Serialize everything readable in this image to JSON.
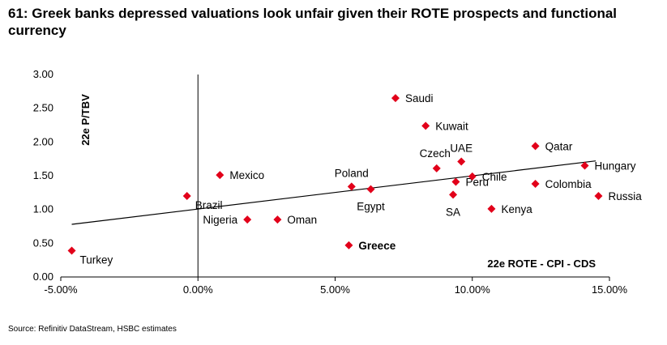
{
  "title": "61: Greek banks depressed valuations look unfair given their ROTE prospects and functional currency",
  "source": "Source: Refinitiv DataStream, HSBC estimates",
  "colors": {
    "marker": "#e2001a",
    "axis": "#000000",
    "trend": "#000000"
  },
  "chart_data": {
    "type": "scatter",
    "xlabel": "22e ROTE - CPI - CDS",
    "ylabel": "22e P/TBV",
    "xlim": [
      -0.05,
      0.15
    ],
    "ylim": [
      0,
      3
    ],
    "xticks": [
      -0.05,
      0,
      0.05,
      0.1,
      0.15
    ],
    "xtick_labels": [
      "-5.00%",
      "0.00%",
      "5.00%",
      "10.00%",
      "15.00%"
    ],
    "yticks": [
      0,
      0.5,
      1,
      1.5,
      2,
      2.5,
      3
    ],
    "ytick_labels": [
      "0.00",
      "0.50",
      "1.00",
      "1.50",
      "2.00",
      "2.50",
      "3.00"
    ],
    "grid": false,
    "trendline": {
      "x": [
        -0.046,
        0.145
      ],
      "y": [
        0.78,
        1.72
      ]
    },
    "points": [
      {
        "name": "Turkey",
        "x": -0.046,
        "y": 0.39,
        "pos": "right-below"
      },
      {
        "name": "Brazil",
        "x": -0.004,
        "y": 1.2,
        "pos": "right-below"
      },
      {
        "name": "Mexico",
        "x": 0.008,
        "y": 1.51,
        "pos": "right"
      },
      {
        "name": "Nigeria",
        "x": 0.018,
        "y": 0.85,
        "pos": "left"
      },
      {
        "name": "Oman",
        "x": 0.029,
        "y": 0.85,
        "pos": "right"
      },
      {
        "name": "Poland",
        "x": 0.056,
        "y": 1.34,
        "pos": "above"
      },
      {
        "name": "Greece",
        "x": 0.055,
        "y": 0.47,
        "pos": "right",
        "bold": true
      },
      {
        "name": "Egypt",
        "x": 0.063,
        "y": 1.3,
        "pos": "below"
      },
      {
        "name": "Saudi",
        "x": 0.072,
        "y": 2.65,
        "pos": "right"
      },
      {
        "name": "Kuwait",
        "x": 0.083,
        "y": 2.24,
        "pos": "right"
      },
      {
        "name": "Czech",
        "x": 0.087,
        "y": 1.61,
        "pos": "above-left"
      },
      {
        "name": "UAE",
        "x": 0.096,
        "y": 1.71,
        "pos": "above"
      },
      {
        "name": "SA",
        "x": 0.093,
        "y": 1.22,
        "pos": "below"
      },
      {
        "name": "Peru",
        "x": 0.094,
        "y": 1.41,
        "pos": "right"
      },
      {
        "name": "Chile",
        "x": 0.1,
        "y": 1.49,
        "pos": "right"
      },
      {
        "name": "Kenya",
        "x": 0.107,
        "y": 1.01,
        "pos": "right"
      },
      {
        "name": "Qatar",
        "x": 0.123,
        "y": 1.94,
        "pos": "right"
      },
      {
        "name": "Colombia",
        "x": 0.123,
        "y": 1.38,
        "pos": "right"
      },
      {
        "name": "Hungary",
        "x": 0.141,
        "y": 1.65,
        "pos": "right"
      },
      {
        "name": "Russia",
        "x": 0.146,
        "y": 1.2,
        "pos": "right"
      }
    ]
  }
}
